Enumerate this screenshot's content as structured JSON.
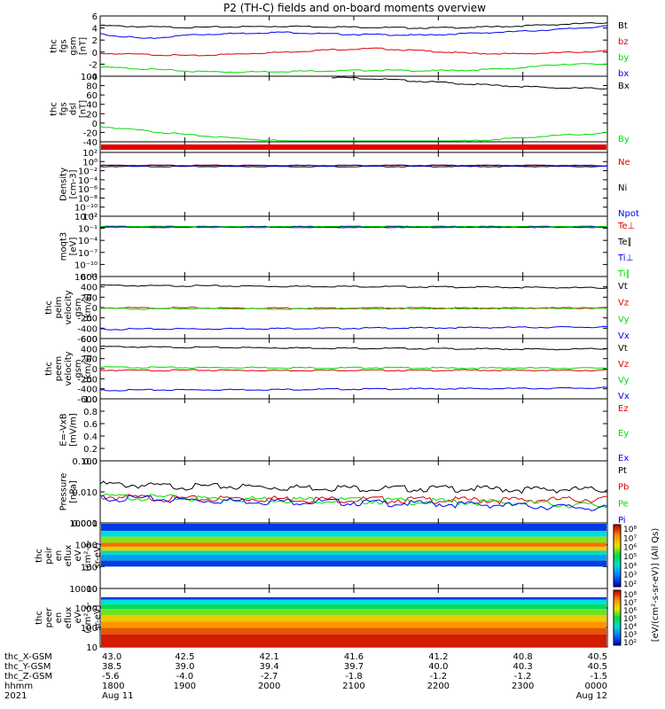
{
  "title": "P2 (TH-C) fields and on-board moments overview",
  "colors": {
    "black": "#000000",
    "red": "#e00000",
    "green": "#00dd00",
    "blue": "#0000ee"
  },
  "chart_data": [
    {
      "type": "line",
      "id": "fgs-gsm",
      "ylabel": [
        "thc",
        "fgs",
        "gsm",
        "[nT]"
      ],
      "yticks": [
        "6",
        "4",
        "2",
        "0",
        "-2",
        "-4"
      ],
      "ylim": [
        -4,
        6
      ],
      "series": [
        {
          "name": "Bt",
          "color": "black",
          "values": [
            4.4,
            4.2,
            4.1,
            4.2,
            4.3,
            4.2,
            4.1,
            4.0,
            4.1,
            4.3,
            4.6,
            4.9
          ]
        },
        {
          "name": "bz",
          "color": "red",
          "values": [
            -0.2,
            -0.4,
            -0.6,
            -0.3,
            0.0,
            0.4,
            0.6,
            0.2,
            -0.2,
            -0.3,
            -0.1,
            0.2
          ]
        },
        {
          "name": "by",
          "color": "green",
          "values": [
            -2.5,
            -2.8,
            -3.2,
            -3.3,
            -3.2,
            -3.1,
            -3.0,
            -3.1,
            -3.0,
            -2.7,
            -2.0,
            -2.0
          ]
        },
        {
          "name": "bx",
          "color": "blue",
          "values": [
            3.0,
            2.2,
            2.9,
            3.1,
            3.3,
            3.0,
            2.9,
            2.8,
            3.1,
            3.4,
            3.8,
            4.3
          ]
        }
      ]
    },
    {
      "type": "line",
      "id": "fgs-dsl",
      "ylabel": [
        "thc",
        "fgs",
        "dsl",
        "[nT]"
      ],
      "yticks": [
        "100",
        "80",
        "60",
        "40",
        "20",
        "0",
        "-20",
        "-40"
      ],
      "ylim": [
        -50,
        100
      ],
      "series": [
        {
          "name": "Bx",
          "color": "black",
          "values": [
            null,
            null,
            null,
            null,
            null,
            98,
            94,
            88,
            82,
            77,
            73,
            72
          ]
        },
        {
          "name": "By",
          "color": "green",
          "values": [
            -15,
            -25,
            -35,
            -42,
            -48,
            -52,
            -54,
            -52,
            -48,
            -42,
            -35,
            -30
          ]
        }
      ]
    },
    {
      "type": "line",
      "id": "density",
      "scale": "log",
      "ylabel": [
        "Density",
        "[cm-3]"
      ],
      "yticks": [
        "10²",
        "10⁰",
        "10⁻²",
        "10⁻⁴",
        "10⁻⁶",
        "10⁻⁸",
        "10⁻¹⁰",
        "10⁻¹²"
      ],
      "ylim": [
        -13,
        3
      ],
      "series": [
        {
          "name": "Ne",
          "color": "red",
          "values": [
            0.6,
            0.6,
            0.6,
            0.6,
            0.6,
            0.6,
            0.6,
            0.6,
            0.6,
            0.6,
            0.6,
            0.5
          ]
        },
        {
          "name": "Ni",
          "color": "black",
          "values": [
            0.3,
            0.3,
            0.3,
            0.3,
            0.3,
            0.3,
            0.3,
            0.3,
            0.3,
            0.3,
            0.3,
            0.3
          ]
        },
        {
          "name": "Npot",
          "color": "blue",
          "values": [
            0.5,
            0.5,
            0.5,
            0.5,
            0.5,
            0.5,
            0.5,
            0.5,
            0.5,
            0.5,
            0.5,
            0.4
          ]
        }
      ]
    },
    {
      "type": "line",
      "id": "temperature",
      "scale": "log",
      "ylabel": [
        "moqt3",
        "[eV]"
      ],
      "yticks": [
        "10²",
        "10⁻¹",
        "10⁻⁴",
        "10⁻⁷",
        "10⁻¹⁰",
        "10⁻¹²"
      ],
      "ylim": [
        -13,
        3
      ],
      "series": [
        {
          "name": "Te⊥",
          "color": "red",
          "values": [
            1.4,
            1.4,
            1.4,
            1.4,
            1.4,
            1.4,
            1.4,
            1.4,
            1.4,
            1.4,
            1.4,
            1.4
          ]
        },
        {
          "name": "Te∥",
          "color": "black",
          "values": [
            1.2,
            1.2,
            1.2,
            1.2,
            1.2,
            1.2,
            1.2,
            1.2,
            1.2,
            1.2,
            1.2,
            1.2
          ]
        },
        {
          "name": "Ti⊥",
          "color": "blue",
          "values": [
            1.9,
            1.9,
            1.9,
            1.9,
            1.9,
            1.9,
            1.9,
            1.9,
            1.9,
            1.9,
            1.9,
            1.9
          ]
        },
        {
          "name": "Ti∥",
          "color": "green",
          "values": [
            1.7,
            1.7,
            1.7,
            1.7,
            1.7,
            1.7,
            1.7,
            1.7,
            1.7,
            1.7,
            1.7,
            1.7
          ]
        }
      ]
    },
    {
      "type": "line",
      "id": "peim-velocity",
      "ylabel": [
        "thc",
        "peim",
        "velocity",
        "gsm",
        "[km/s]"
      ],
      "yticks": [
        "600",
        "400",
        "200",
        "0",
        "-200",
        "-400",
        "-600"
      ],
      "ylim": [
        -600,
        600
      ],
      "series": [
        {
          "name": "Vt",
          "color": "black",
          "values": [
            430,
            420,
            420,
            415,
            410,
            410,
            405,
            400,
            395,
            390,
            385,
            380
          ]
        },
        {
          "name": "Vz",
          "color": "red",
          "values": [
            -5,
            -10,
            -8,
            -12,
            -10,
            -15,
            -12,
            -10,
            -15,
            -12,
            -10,
            -8
          ]
        },
        {
          "name": "Vy",
          "color": "green",
          "values": [
            -20,
            -25,
            -22,
            -20,
            -25,
            -22,
            -20,
            -18,
            -20,
            -15,
            -12,
            -10
          ]
        },
        {
          "name": "Vx",
          "color": "blue",
          "values": [
            -420,
            -415,
            -412,
            -408,
            -405,
            -402,
            -398,
            -395,
            -390,
            -385,
            -380,
            -378
          ]
        }
      ]
    },
    {
      "type": "line",
      "id": "peem-velocity",
      "ylabel": [
        "thc",
        "peem",
        "velocity",
        "gsm",
        "[km/s]"
      ],
      "yticks": [
        "600",
        "400",
        "200",
        "0",
        "-200",
        "-400",
        "-600"
      ],
      "ylim": [
        -600,
        600
      ],
      "series": [
        {
          "name": "Vt",
          "color": "black",
          "values": [
            440,
            430,
            425,
            420,
            415,
            410,
            405,
            400,
            395,
            390,
            385,
            400
          ]
        },
        {
          "name": "Vz",
          "color": "red",
          "values": [
            -30,
            -35,
            -30,
            -32,
            -35,
            -30,
            -32,
            -35,
            -30,
            -32,
            -35,
            -30
          ]
        },
        {
          "name": "Vy",
          "color": "green",
          "values": [
            30,
            25,
            20,
            25,
            20,
            15,
            20,
            15,
            10,
            15,
            10,
            15
          ]
        },
        {
          "name": "Vx",
          "color": "blue",
          "values": [
            -430,
            -425,
            -420,
            -418,
            -415,
            -410,
            -405,
            -400,
            -398,
            -395,
            -390,
            -380
          ]
        }
      ]
    },
    {
      "type": "line",
      "id": "efield",
      "ylabel": [
        "E=-VxB",
        "[mV/m]"
      ],
      "yticks": [
        "1.0",
        "0.8",
        "0.6",
        "0.4",
        "0.2",
        "0.0"
      ],
      "ylim": [
        0,
        1
      ],
      "series": [
        {
          "name": "Ez",
          "color": "red",
          "values": []
        },
        {
          "name": "Ey",
          "color": "green",
          "values": []
        },
        {
          "name": "Ex",
          "color": "blue",
          "values": []
        }
      ]
    },
    {
      "type": "line",
      "id": "pressure",
      "scale": "log",
      "ylabel": [
        "Pressure",
        "[nPa]"
      ],
      "yticks": [
        "0.100",
        "0.010",
        "0.001"
      ],
      "ylim": [
        -3,
        -1
      ],
      "series": [
        {
          "name": "Pt",
          "color": "black",
          "values": [
            0.018,
            0.016,
            0.015,
            0.015,
            0.014,
            0.014,
            0.013,
            0.013,
            0.013,
            0.012,
            0.012,
            0.012
          ]
        },
        {
          "name": "Pb",
          "color": "red",
          "values": [
            0.007,
            0.0065,
            0.006,
            0.0062,
            0.006,
            0.0058,
            0.0057,
            0.0056,
            0.0055,
            0.0055,
            0.0056,
            0.006
          ]
        },
        {
          "name": "Pe",
          "color": "green",
          "values": [
            0.007,
            0.0068,
            0.0062,
            0.006,
            0.0058,
            0.0055,
            0.0053,
            0.005,
            0.0048,
            0.0045,
            0.004,
            0.0035
          ]
        },
        {
          "name": "Pi",
          "color": "blue",
          "values": [
            0.0065,
            0.006,
            0.0055,
            0.0052,
            0.005,
            0.0048,
            0.0045,
            0.0042,
            0.004,
            0.0037,
            0.0033,
            0.003
          ]
        }
      ]
    },
    {
      "type": "heatmap",
      "id": "peir-spectrogram",
      "ylabel": [
        "thc",
        "peir",
        "en",
        "eflux",
        "eV",
        "(cm²-s-",
        "sr-eV)"
      ],
      "yticks": [
        "10000",
        "1000",
        "100",
        "10"
      ],
      "ylim": [
        1,
        4.3
      ],
      "rows": [
        {
          "logE_from": 3.9,
          "logE_to": 4.3,
          "level": 2.5
        },
        {
          "logE_from": 3.6,
          "logE_to": 3.9,
          "level": 4.0
        },
        {
          "logE_from": 3.3,
          "logE_to": 3.6,
          "level": 5.6
        },
        {
          "logE_from": 3.1,
          "logE_to": 3.3,
          "level": 7.2
        },
        {
          "logE_from": 2.9,
          "logE_to": 3.1,
          "level": 6.3
        },
        {
          "logE_from": 2.7,
          "logE_to": 2.9,
          "level": 4.2
        },
        {
          "logE_from": 2.4,
          "logE_to": 2.7,
          "level": 3.4
        },
        {
          "logE_from": 2.1,
          "logE_to": 2.4,
          "level": 2.5
        }
      ]
    },
    {
      "type": "heatmap",
      "id": "peer-spectrogram",
      "ylabel": [
        "thc",
        "peer",
        "en",
        "eflux",
        "eV",
        "(cm²-s-",
        "sr-eV)"
      ],
      "yticks": [
        "10000",
        "1000",
        "100",
        "10"
      ],
      "ylim": [
        0.6,
        4.3
      ],
      "rows": [
        {
          "logE_from": 3.6,
          "logE_to": 3.75,
          "level": 2.5
        },
        {
          "logE_from": 3.3,
          "logE_to": 3.6,
          "level": 4.0
        },
        {
          "logE_from": 3.0,
          "logE_to": 3.3,
          "level": 4.8
        },
        {
          "logE_from": 2.6,
          "logE_to": 3.0,
          "level": 5.5
        },
        {
          "logE_from": 2.2,
          "logE_to": 2.6,
          "level": 6.3
        },
        {
          "logE_from": 1.8,
          "logE_to": 2.2,
          "level": 6.9
        },
        {
          "logE_from": 1.4,
          "logE_to": 1.8,
          "level": 7.4
        },
        {
          "logE_from": 0.6,
          "logE_to": 1.4,
          "level": 7.8
        }
      ]
    }
  ],
  "colorbar": {
    "label": "[eV/(cm²-s-sr-eV)] (All Qs)",
    "ticks_top": [
      "10⁸",
      "10⁷",
      "10⁶",
      "10⁵",
      "10⁴",
      "10³",
      "10²"
    ],
    "ticks_bottom": [
      "10⁸",
      "10⁷",
      "10⁶",
      "10⁵",
      "10⁴",
      "10³",
      "10²"
    ]
  },
  "ephemeris": {
    "labels": [
      "thc_X-GSM",
      "thc_Y-GSM",
      "thc_Z-GSM",
      "hhmm",
      "2021"
    ],
    "columns": [
      {
        "x": "43.0",
        "y": "38.5",
        "z": "-5.6",
        "time": "1800",
        "date": "Aug 11"
      },
      {
        "x": "42.5",
        "y": "39.0",
        "z": "-4.0",
        "time": "1900",
        "date": ""
      },
      {
        "x": "42.1",
        "y": "39.4",
        "z": "-2.7",
        "time": "2000",
        "date": ""
      },
      {
        "x": "41.6",
        "y": "39.7",
        "z": "-1.8",
        "time": "2100",
        "date": ""
      },
      {
        "x": "41.2",
        "y": "40.0",
        "z": "-1.2",
        "time": "2200",
        "date": ""
      },
      {
        "x": "40.8",
        "y": "40.3",
        "z": "-1.2",
        "time": "2300",
        "date": ""
      },
      {
        "x": "40.5",
        "y": "40.5",
        "z": "-1.5",
        "time": "0000",
        "date": "Aug 12"
      }
    ]
  }
}
